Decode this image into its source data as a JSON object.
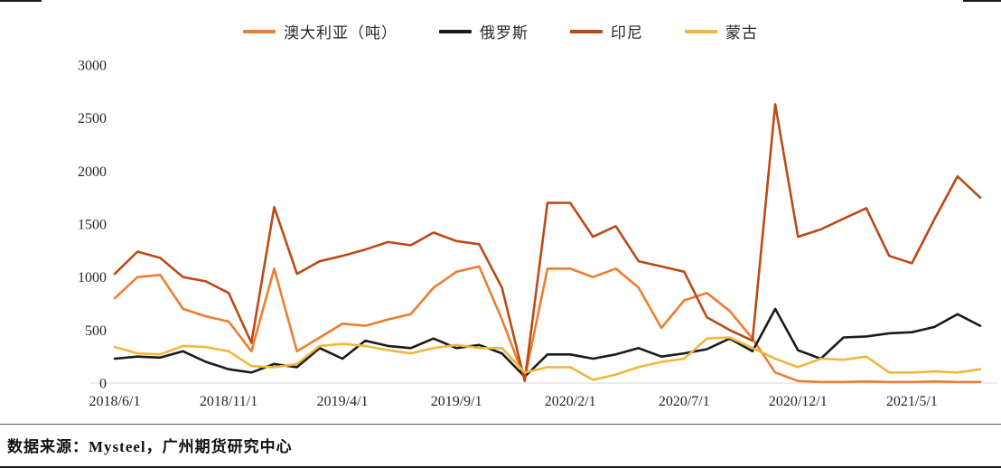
{
  "chart_data": {
    "type": "line",
    "title": "",
    "xlabel": "",
    "ylabel": "",
    "grid": false,
    "legend_position": "top",
    "ylim": [
      0,
      3000
    ],
    "yticks": [
      0,
      500,
      1000,
      1500,
      2000,
      2500,
      3000
    ],
    "xtick_every": 5,
    "xtick_labels_shown": [
      "2018/6/1",
      "2018/11/1",
      "2019/4/1",
      "2019/9/1",
      "2020/2/1",
      "2020/7/1",
      "2020/12/1",
      "2021/5/1"
    ],
    "x": [
      "2018/6/1",
      "2018/7/1",
      "2018/8/1",
      "2018/9/1",
      "2018/10/1",
      "2018/11/1",
      "2018/12/1",
      "2019/1/1",
      "2019/2/1",
      "2019/3/1",
      "2019/4/1",
      "2019/5/1",
      "2019/6/1",
      "2019/7/1",
      "2019/8/1",
      "2019/9/1",
      "2019/10/1",
      "2019/11/1",
      "2019/12/1",
      "2020/1/1",
      "2020/2/1",
      "2020/3/1",
      "2020/4/1",
      "2020/5/1",
      "2020/6/1",
      "2020/7/1",
      "2020/8/1",
      "2020/9/1",
      "2020/10/1",
      "2020/11/1",
      "2020/12/1",
      "2021/1/1",
      "2021/2/1",
      "2021/3/1",
      "2021/4/1",
      "2021/5/1",
      "2021/6/1",
      "2021/7/1",
      "2021/8/1"
    ],
    "series": [
      {
        "name": "澳大利亚（吨）",
        "color": "#ED7D31",
        "values": [
          800,
          1000,
          1020,
          700,
          630,
          580,
          300,
          1080,
          300,
          430,
          560,
          540,
          600,
          650,
          900,
          1050,
          1100,
          600,
          40,
          1080,
          1080,
          1000,
          1080,
          900,
          520,
          780,
          850,
          680,
          420,
          100,
          20,
          10,
          10,
          15,
          10,
          10,
          15,
          10,
          10
        ]
      },
      {
        "name": "俄罗斯",
        "color": "#1A1A1A",
        "values": [
          230,
          250,
          240,
          300,
          200,
          130,
          100,
          180,
          150,
          330,
          230,
          400,
          350,
          330,
          420,
          330,
          360,
          280,
          60,
          270,
          270,
          230,
          270,
          330,
          250,
          280,
          320,
          420,
          300,
          700,
          310,
          230,
          430,
          440,
          470,
          480,
          530,
          650,
          540
        ]
      },
      {
        "name": "印尼",
        "color": "#BA4A16",
        "values": [
          1030,
          1240,
          1180,
          1000,
          960,
          850,
          380,
          1660,
          1030,
          1150,
          1200,
          1260,
          1330,
          1300,
          1420,
          1340,
          1310,
          900,
          20,
          1700,
          1700,
          1380,
          1480,
          1150,
          1100,
          1050,
          620,
          500,
          400,
          2630,
          1380,
          1450,
          1550,
          1650,
          1200,
          1130,
          1550,
          1950,
          1750
        ]
      },
      {
        "name": "蒙古",
        "color": "#F2B63D",
        "values": [
          340,
          280,
          270,
          350,
          340,
          300,
          160,
          150,
          180,
          350,
          370,
          350,
          310,
          280,
          330,
          360,
          330,
          330,
          100,
          150,
          150,
          30,
          80,
          150,
          200,
          230,
          420,
          430,
          330,
          230,
          150,
          230,
          220,
          250,
          100,
          100,
          110,
          100,
          130
        ]
      }
    ]
  },
  "axis_style": {
    "tick_color": "#262626",
    "axis_line_color": "#d9d9d9"
  },
  "footer": {
    "source": "数据来源：Mysteel，广州期货研究中心"
  }
}
